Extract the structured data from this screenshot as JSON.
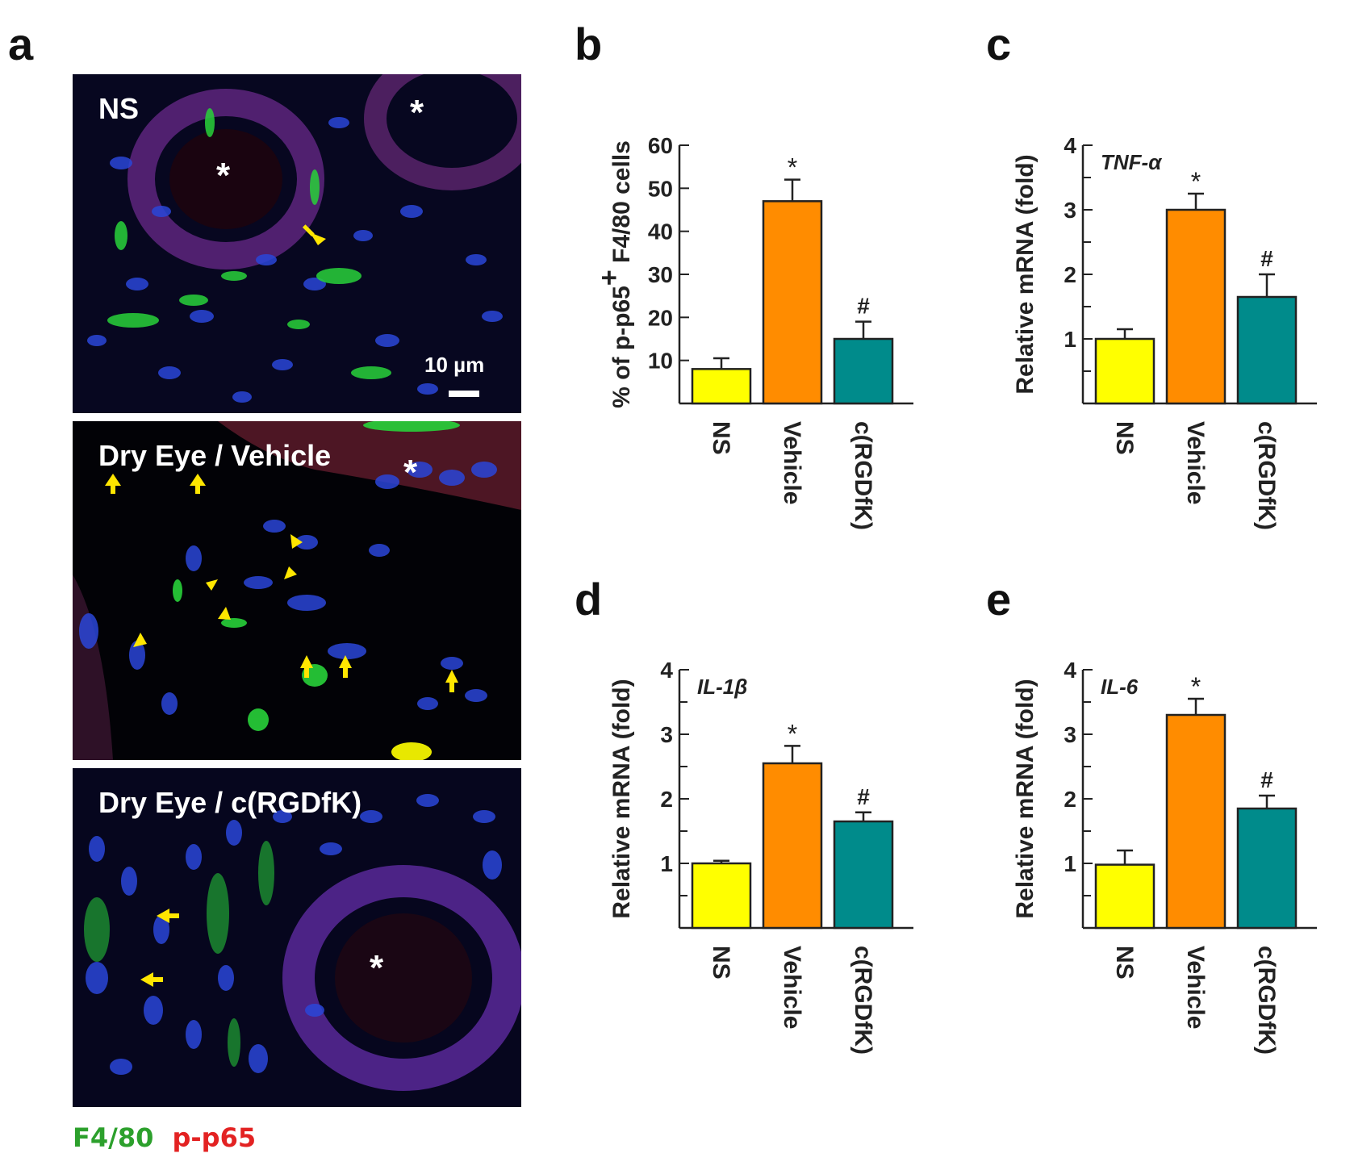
{
  "panel_letters": {
    "a": "a",
    "b": "b",
    "c": "c",
    "d": "d",
    "e": "e"
  },
  "micrographs": [
    {
      "label": "NS",
      "scale_bar": "10 µm"
    },
    {
      "label": "Dry Eye / Vehicle"
    },
    {
      "label": "Dry Eye / c(RGDfK)"
    }
  ],
  "stain_legend": {
    "marker1": "F4/80",
    "marker2": "p-p65",
    "marker1_color": "#2ca02c",
    "marker2_color": "#e32222"
  },
  "colors": {
    "NS": "#ffff00",
    "Vehicle": "#ff8c00",
    "c(RGDfK)": "#008b8b",
    "nucleus": "#1f3fd6",
    "arrow": "#ffe600"
  },
  "chart_data": [
    {
      "panel": "b",
      "type": "bar",
      "ylabel_parts": [
        "% of p-p65",
        "+",
        " F4/80 cells"
      ],
      "ylabel": "% of p-p65+ F4/80 cells",
      "categories": [
        "NS",
        "Vehicle",
        "c(RGDfK)"
      ],
      "values": [
        8,
        47,
        15
      ],
      "errors": [
        2.5,
        5,
        4
      ],
      "annotations": [
        "",
        "*",
        "#"
      ],
      "ylim": [
        0,
        60
      ],
      "yticks": [
        10,
        20,
        30,
        40,
        50,
        60
      ],
      "minor_ticks": false,
      "gene": ""
    },
    {
      "panel": "c",
      "type": "bar",
      "ylabel": "Relative mRNA (fold)",
      "categories": [
        "NS",
        "Vehicle",
        "c(RGDfK)"
      ],
      "values": [
        1.0,
        3.0,
        1.65
      ],
      "errors": [
        0.15,
        0.25,
        0.35
      ],
      "annotations": [
        "",
        "*",
        "#"
      ],
      "ylim": [
        0,
        4
      ],
      "yticks": [
        1,
        2,
        3,
        4
      ],
      "minor_ticks": true,
      "gene": "TNF-α"
    },
    {
      "panel": "d",
      "type": "bar",
      "ylabel": "Relative mRNA (fold)",
      "categories": [
        "NS",
        "Vehicle",
        "c(RGDfK)"
      ],
      "values": [
        1.0,
        2.55,
        1.65
      ],
      "errors": [
        0.04,
        0.27,
        0.14
      ],
      "annotations": [
        "",
        "*",
        "#"
      ],
      "ylim": [
        0,
        4
      ],
      "yticks": [
        1,
        2,
        3,
        4
      ],
      "minor_ticks": true,
      "gene": "IL-1β"
    },
    {
      "panel": "e",
      "type": "bar",
      "ylabel": "Relative mRNA (fold)",
      "categories": [
        "NS",
        "Vehicle",
        "c(RGDfK)"
      ],
      "values": [
        0.98,
        3.3,
        1.85
      ],
      "errors": [
        0.22,
        0.25,
        0.2
      ],
      "annotations": [
        "",
        "*",
        "#"
      ],
      "ylim": [
        0,
        4
      ],
      "yticks": [
        1,
        2,
        3,
        4
      ],
      "minor_ticks": true,
      "gene": "IL-6"
    }
  ]
}
